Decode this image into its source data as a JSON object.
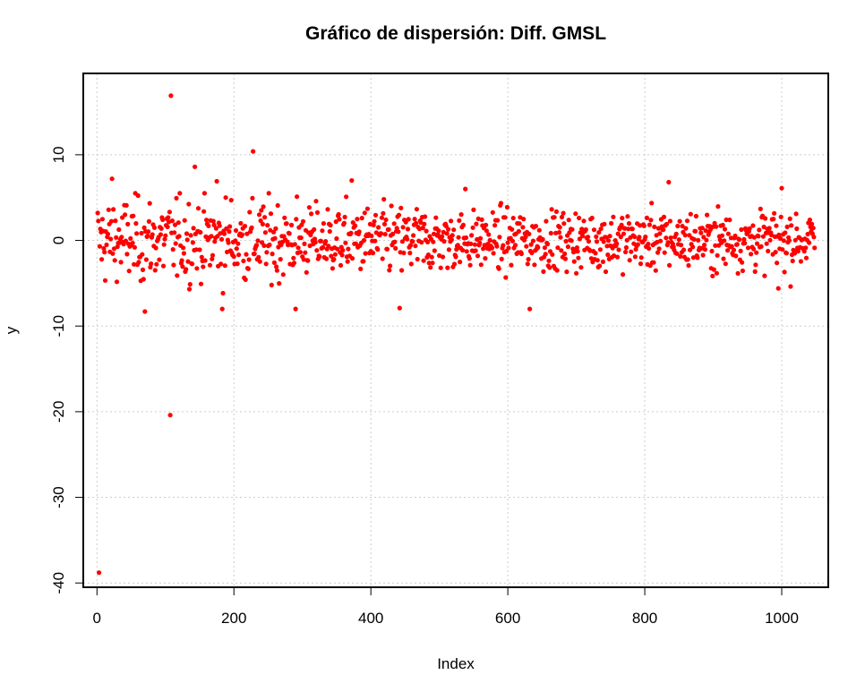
{
  "chart_data": {
    "type": "scatter",
    "title": "Gráfico de dispersión: Diff. GMSL",
    "xlabel": "Index",
    "ylabel": "y",
    "xlim": [
      -20,
      1068
    ],
    "ylim": [
      -40.5,
      19.5
    ],
    "xticks": [
      0,
      200,
      400,
      600,
      800,
      1000
    ],
    "xtick_labels": [
      "0",
      "200",
      "400",
      "600",
      "800",
      "1000"
    ],
    "yticks": [
      -40,
      -30,
      -20,
      -10,
      0,
      10
    ],
    "ytick_labels": [
      "-40",
      "-30",
      "-20",
      "-10",
      "0",
      "10"
    ],
    "grid": true,
    "point_color": "#ff0000",
    "grid_color": "#cccccc",
    "n_points": 1048,
    "noted_points": [
      {
        "x": 3,
        "y": -38.8
      },
      {
        "x": 108,
        "y": 16.9
      },
      {
        "x": 107,
        "y": -20.4
      },
      {
        "x": 228,
        "y": 10.4
      },
      {
        "x": 290,
        "y": 8.6
      },
      {
        "x": 143,
        "y": 8.6
      },
      {
        "x": 22,
        "y": 7.2
      },
      {
        "x": 372,
        "y": 7.0
      },
      {
        "x": 175,
        "y": 6.9
      },
      {
        "x": 1000,
        "y": 6.1
      },
      {
        "x": 538,
        "y": 6.0
      },
      {
        "x": 835,
        "y": 6.8
      },
      {
        "x": 70,
        "y": -8.3
      },
      {
        "x": 183,
        "y": -8.0
      },
      {
        "x": 290,
        "y": -8.0
      },
      {
        "x": 442,
        "y": -7.9
      },
      {
        "x": 632,
        "y": -8.0
      },
      {
        "x": 995,
        "y": -5.6
      }
    ]
  }
}
